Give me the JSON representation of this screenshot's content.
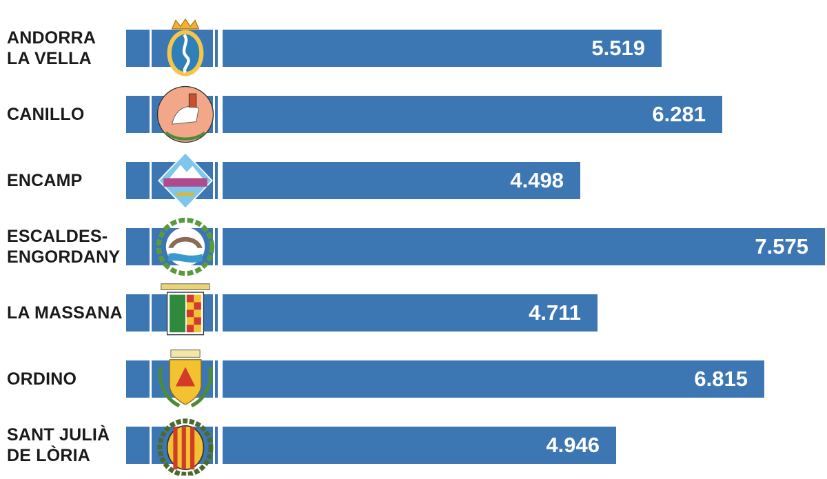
{
  "chart_data": {
    "type": "bar",
    "orientation": "horizontal",
    "title": "",
    "xlabel": "",
    "ylabel": "",
    "categories": [
      [
        "ANDORRA",
        "LA VELLA"
      ],
      [
        "CANILLO"
      ],
      [
        "ENCAMP"
      ],
      [
        "ESCALDES-",
        "ENGORDANY"
      ],
      [
        "LA MASSANA"
      ],
      [
        "ORDINO"
      ],
      [
        "SANT JULIÀ",
        "DE LÒRIA"
      ]
    ],
    "values": [
      5519,
      6281,
      4498,
      7575,
      4711,
      6815,
      4946
    ],
    "value_labels": [
      "5.519",
      "6.281",
      "4.498",
      "7.575",
      "4.711",
      "6.815",
      "4.946"
    ],
    "crest_icons": [
      "andorra-la-vella-crest-icon",
      "canillo-crest-icon",
      "encamp-crest-icon",
      "escaldes-engordany-crest-icon",
      "la-massana-crest-icon",
      "ordino-crest-icon",
      "sant-julia-de-loria-crest-icon"
    ],
    "bar_color": "#3d77b3",
    "value_label_color": "#ffffff",
    "grid": false,
    "legend": "none"
  }
}
